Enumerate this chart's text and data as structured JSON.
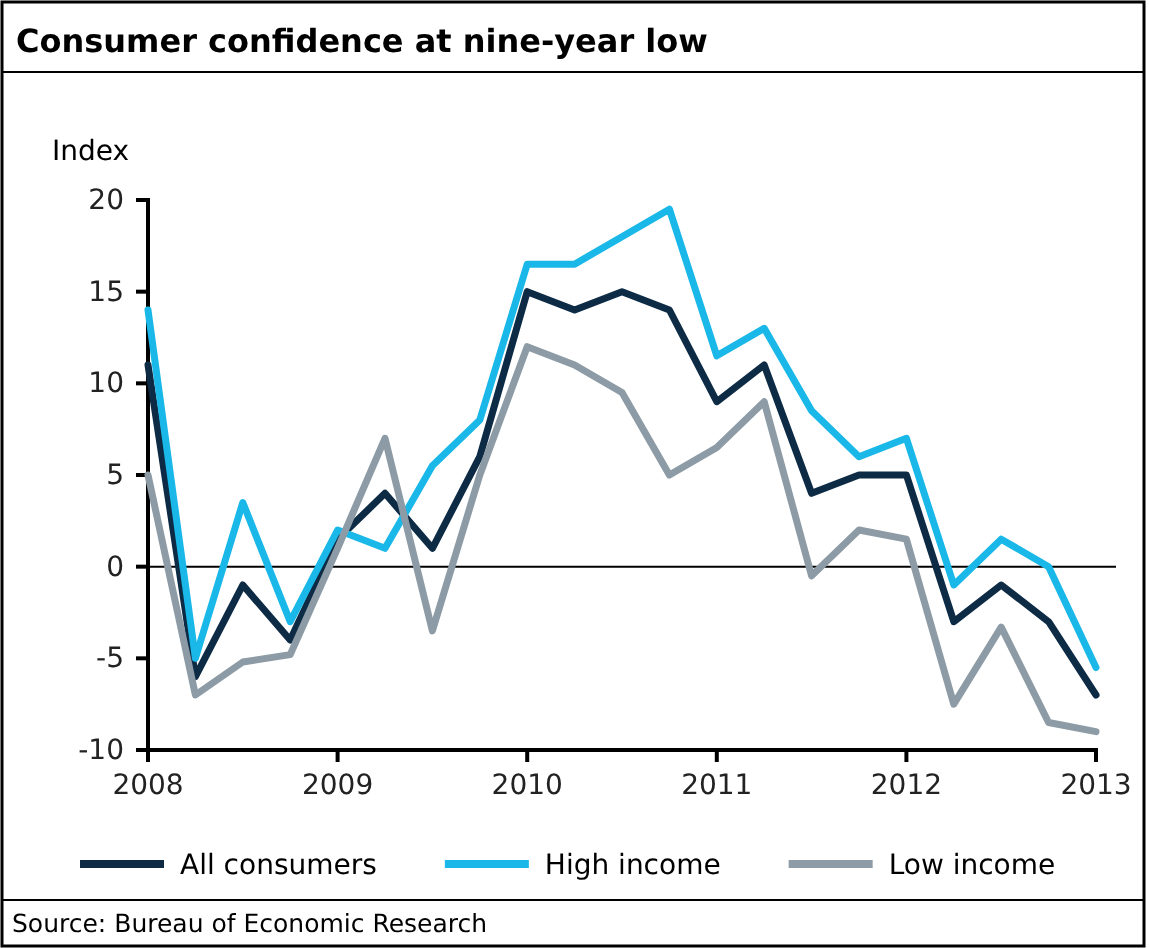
{
  "chart_data": {
    "type": "line",
    "title": "Consumer confidence at nine-year low",
    "ylabel": "Index",
    "annotations": [
      "Source: Bureau of Economic Research"
    ],
    "x": [
      2008,
      2008.25,
      2008.5,
      2008.75,
      2009,
      2009.25,
      2009.5,
      2009.75,
      2010,
      2010.25,
      2010.5,
      2010.75,
      2011,
      2011.25,
      2011.5,
      2011.75,
      2012,
      2012.25,
      2012.5,
      2012.75,
      2013
    ],
    "series": [
      {
        "name": "All consumers",
        "color": "#0d2b45",
        "values": [
          11,
          -6,
          -1,
          -4,
          1.5,
          4,
          1,
          6,
          15,
          14,
          15,
          14,
          9,
          11,
          4,
          5,
          5,
          -3,
          -1,
          -3,
          -7
        ]
      },
      {
        "name": "High income",
        "color": "#1ab8e8",
        "values": [
          14,
          -5,
          3.5,
          -3,
          2,
          1,
          5.5,
          8,
          16.5,
          16.5,
          18,
          19.5,
          11.5,
          13,
          8.5,
          6,
          7,
          -1,
          1.5,
          0,
          -5.5
        ]
      },
      {
        "name": "Low income",
        "color": "#8c9ba5",
        "values": [
          5,
          -7,
          -5.2,
          -4.8,
          1,
          7,
          -3.5,
          5,
          12,
          11,
          9.5,
          5,
          6.5,
          9,
          -0.5,
          2,
          1.5,
          -7.5,
          -3.3,
          -8.5,
          -9
        ]
      }
    ],
    "xlim": [
      2008,
      2013
    ],
    "xticks": [
      2008,
      2009,
      2010,
      2011,
      2012,
      2013
    ],
    "ylim": [
      -10,
      20
    ],
    "yticks": [
      -10,
      -5,
      0,
      5,
      10,
      15,
      20
    ],
    "ref_lines": [
      {
        "axis": "y",
        "value": 0,
        "color": "#000000"
      }
    ],
    "grid": false,
    "legend": "bottom",
    "marker": "none",
    "line_style": "solid"
  }
}
